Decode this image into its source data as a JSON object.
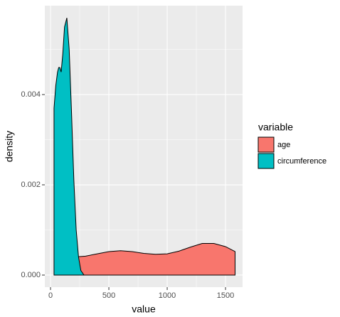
{
  "chart_data": {
    "type": "density",
    "x_label": "value",
    "y_label": "density",
    "legend_title": "variable",
    "legend_position": "right",
    "grid": true,
    "xlim": [
      -49,
      1646
    ],
    "ylim": [
      -0.000268,
      0.00597
    ],
    "xticks": [
      0,
      500,
      1000,
      1500
    ],
    "yticks": [
      {
        "value": 0,
        "label": "0.000"
      },
      {
        "value": 0.002,
        "label": "0.002"
      },
      {
        "value": 0.004,
        "label": "0.004"
      }
    ],
    "series": [
      {
        "name": "age",
        "color": "#f8766d",
        "x": [
          118,
          200,
          300,
          400,
          500,
          600,
          700,
          800,
          900,
          1000,
          1100,
          1200,
          1300,
          1400,
          1500,
          1582
        ],
        "values": [
          0.0004,
          0.0004,
          0.00042,
          0.00047,
          0.00052,
          0.00054,
          0.00052,
          0.00048,
          0.00046,
          0.00047,
          0.00053,
          0.00062,
          0.0007,
          0.0007,
          0.00063,
          0.00052
        ]
      },
      {
        "name": "circumference",
        "color": "#00bfc4",
        "x": [
          30,
          45,
          60,
          70,
          80,
          91,
          105,
          120,
          140,
          160,
          180,
          200,
          220,
          240,
          260,
          287
        ],
        "values": [
          0.0037,
          0.0042,
          0.0045,
          0.0046,
          0.0046,
          0.0045,
          0.0049,
          0.0055,
          0.0057,
          0.005,
          0.0036,
          0.0021,
          0.001,
          0.0004,
          0.0001,
          0
        ]
      }
    ]
  }
}
